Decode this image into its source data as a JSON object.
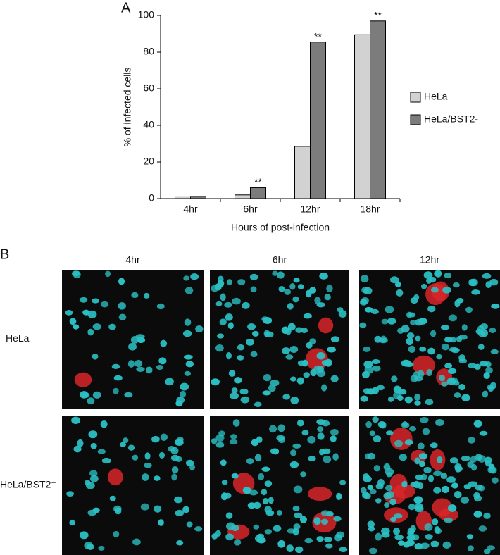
{
  "panel_a_label": "A",
  "chart_data": {
    "type": "bar",
    "categories": [
      "4hr",
      "6hr",
      "12hr",
      "18hr"
    ],
    "series": [
      {
        "name": "HeLa",
        "color": "#d2d2d2",
        "values": [
          1,
          2,
          28.5,
          89.5
        ]
      },
      {
        "name": "HeLa/BST2-",
        "color": "#7c7c7c",
        "values": [
          1.2,
          6,
          85.5,
          97
        ]
      }
    ],
    "annotations": [
      {
        "category": "6hr",
        "series": "HeLa/BST2-",
        "text": "**"
      },
      {
        "category": "12hr",
        "series": "HeLa/BST2-",
        "text": "**"
      },
      {
        "category": "18hr",
        "series": "HeLa/BST2-",
        "text": "**"
      }
    ],
    "ylabel": "% of infected cells",
    "xlabel": "Hours of post-infection",
    "ylim": [
      0,
      100
    ],
    "yticks": [
      0,
      20,
      40,
      60,
      80,
      100
    ],
    "legend": "right"
  },
  "panel_b": {
    "label": "B",
    "columns": [
      "4hr",
      "6hr",
      "12hr"
    ],
    "rows": [
      "HeLa",
      "HeLa/BST2⁻"
    ]
  }
}
